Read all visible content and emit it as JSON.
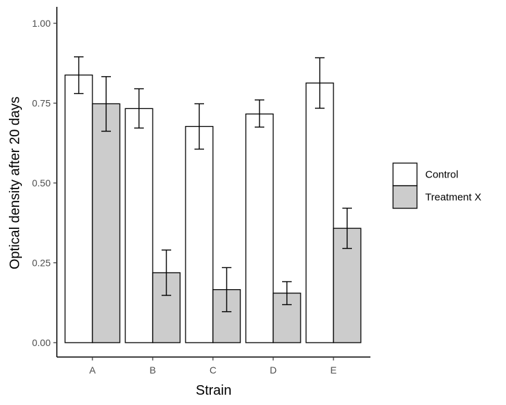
{
  "chart_data": {
    "type": "bar",
    "title": "",
    "xlabel": "Strain",
    "ylabel": "Optical density after 20 days",
    "categories": [
      "A",
      "B",
      "C",
      "D",
      "E"
    ],
    "ylim": [
      0,
      1.0
    ],
    "yticks": [
      0.0,
      0.25,
      0.5,
      0.75,
      1.0
    ],
    "ytick_labels": [
      "0.00",
      "0.25",
      "0.50",
      "0.75",
      "1.00"
    ],
    "series": [
      {
        "name": "Control",
        "color": "#ffffff",
        "values": [
          0.838,
          0.733,
          0.677,
          0.716,
          0.813
        ],
        "err_low": [
          0.78,
          0.672,
          0.606,
          0.675,
          0.734
        ],
        "err_high": [
          0.895,
          0.795,
          0.748,
          0.76,
          0.892
        ]
      },
      {
        "name": "Treatment X",
        "color": "#cccccc",
        "values": [
          0.748,
          0.219,
          0.166,
          0.155,
          0.358
        ],
        "err_low": [
          0.662,
          0.148,
          0.097,
          0.119,
          0.295
        ],
        "err_high": [
          0.833,
          0.29,
          0.235,
          0.191,
          0.421
        ]
      }
    ],
    "legend_position": "right",
    "grid": false
  }
}
